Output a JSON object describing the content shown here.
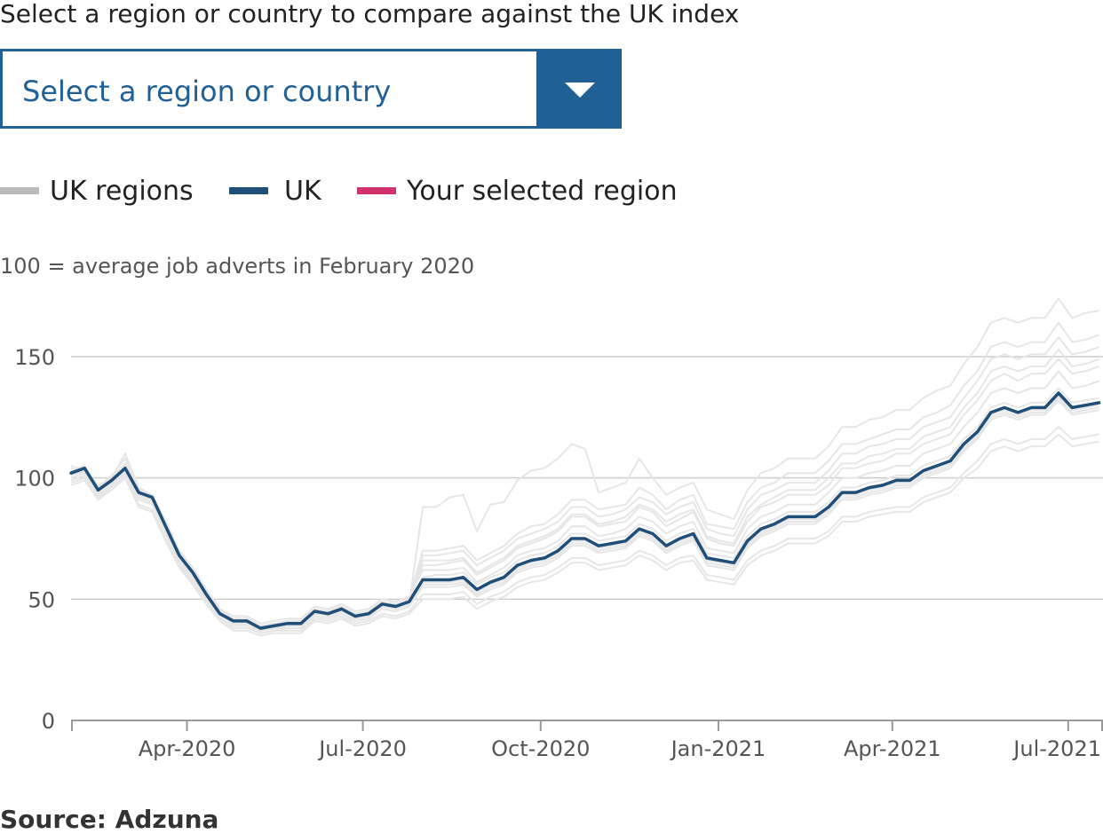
{
  "prompt": "Select a region or country to compare against the UK index",
  "select": {
    "value": "Select a region or country"
  },
  "legend": [
    {
      "label": "UK regions",
      "color": "#bbbbbb"
    },
    {
      "label": "UK",
      "color": "#1f4e79"
    },
    {
      "label": "Your selected region",
      "color": "#d0336c"
    }
  ],
  "source": "Source: Adzuna",
  "colors": {
    "accent": "#206095",
    "uk": "#1f4e79",
    "regions": "#e6e6e6",
    "selected": "#d0336c",
    "grid": "#cccccc"
  },
  "chart_data": {
    "type": "line",
    "subtitle": "100 = average job adverts in February 2020",
    "ylim": [
      0,
      180
    ],
    "yticks": [
      0,
      50,
      100,
      150
    ],
    "xlim": [
      "2020-02-01",
      "2021-07-19"
    ],
    "xticks": [
      {
        "label": "Apr-2020",
        "date": "2020-04-01"
      },
      {
        "label": "Jul-2020",
        "date": "2020-07-01"
      },
      {
        "label": "Oct-2020",
        "date": "2020-10-01"
      },
      {
        "label": "Jan-2021",
        "date": "2021-01-01"
      },
      {
        "label": "Apr-2021",
        "date": "2021-04-01"
      },
      {
        "label": "Jul-2021",
        "date": "2021-07-01"
      }
    ],
    "grid": true,
    "x": [
      "2020-02-01",
      "2020-02-08",
      "2020-02-15",
      "2020-02-22",
      "2020-02-29",
      "2020-03-07",
      "2020-03-14",
      "2020-03-21",
      "2020-03-28",
      "2020-04-04",
      "2020-04-11",
      "2020-04-18",
      "2020-04-25",
      "2020-05-02",
      "2020-05-09",
      "2020-05-16",
      "2020-05-23",
      "2020-05-30",
      "2020-06-06",
      "2020-06-13",
      "2020-06-20",
      "2020-06-27",
      "2020-07-04",
      "2020-07-11",
      "2020-07-18",
      "2020-07-25",
      "2020-08-01",
      "2020-08-08",
      "2020-08-15",
      "2020-08-22",
      "2020-08-29",
      "2020-09-05",
      "2020-09-12",
      "2020-09-19",
      "2020-09-26",
      "2020-10-03",
      "2020-10-10",
      "2020-10-17",
      "2020-10-24",
      "2020-10-31",
      "2020-11-07",
      "2020-11-14",
      "2020-11-21",
      "2020-11-28",
      "2020-12-05",
      "2020-12-12",
      "2020-12-19",
      "2020-12-26",
      "2021-01-02",
      "2021-01-09",
      "2021-01-16",
      "2021-01-23",
      "2021-01-30",
      "2021-02-06",
      "2021-02-13",
      "2021-02-20",
      "2021-02-27",
      "2021-03-06",
      "2021-03-13",
      "2021-03-20",
      "2021-03-27",
      "2021-04-03",
      "2021-04-10",
      "2021-04-17",
      "2021-04-24",
      "2021-05-01",
      "2021-05-08",
      "2021-05-15",
      "2021-05-22",
      "2021-05-29",
      "2021-06-05",
      "2021-06-12",
      "2021-06-19",
      "2021-06-26",
      "2021-07-03",
      "2021-07-10",
      "2021-07-17"
    ],
    "series": [
      {
        "name": "UK",
        "values": [
          102,
          104,
          95,
          99,
          104,
          94,
          92,
          80,
          68,
          61,
          52,
          44,
          41,
          41,
          38,
          39,
          40,
          40,
          45,
          44,
          46,
          43,
          44,
          48,
          47,
          49,
          58,
          58,
          58,
          59,
          54,
          57,
          59,
          64,
          66,
          67,
          70,
          75,
          75,
          72,
          73,
          74,
          79,
          77,
          72,
          75,
          77,
          67,
          66,
          65,
          74,
          79,
          81,
          84,
          84,
          84,
          88,
          94,
          94,
          96,
          97,
          99,
          99,
          103,
          105,
          107,
          114,
          119,
          127,
          129,
          127,
          129,
          129,
          135,
          129,
          130,
          131
        ]
      }
    ],
    "regions": [
      [
        103,
        104,
        95,
        99,
        105,
        94,
        92,
        80,
        68,
        61,
        52,
        44,
        41,
        41,
        38,
        39,
        40,
        40,
        45,
        44,
        46,
        43,
        44,
        48,
        47,
        49,
        59,
        60,
        60,
        61,
        56,
        59,
        61,
        66,
        68,
        69,
        72,
        77,
        77,
        74,
        75,
        76,
        81,
        79,
        74,
        77,
        79,
        69,
        68,
        67,
        76,
        81,
        83,
        86,
        86,
        86,
        90,
        96,
        96,
        98,
        99,
        101,
        101,
        105,
        107,
        109,
        116,
        121,
        129,
        131,
        129,
        131,
        131,
        137,
        131,
        132,
        133
      ],
      [
        100,
        102,
        93,
        97,
        103,
        92,
        90,
        78,
        66,
        59,
        50,
        42,
        39,
        39,
        36,
        37,
        38,
        38,
        43,
        42,
        44,
        41,
        42,
        46,
        45,
        47,
        55,
        55,
        55,
        56,
        51,
        54,
        56,
        61,
        63,
        64,
        67,
        72,
        72,
        69,
        70,
        71,
        76,
        74,
        69,
        72,
        74,
        64,
        63,
        62,
        71,
        76,
        78,
        81,
        81,
        81,
        85,
        91,
        91,
        93,
        94,
        96,
        96,
        100,
        102,
        104,
        111,
        116,
        124,
        126,
        124,
        126,
        126,
        132,
        126,
        127,
        128
      ],
      [
        105,
        103,
        97,
        100,
        110,
        96,
        93,
        82,
        70,
        63,
        54,
        46,
        42,
        42,
        39,
        40,
        41,
        41,
        46,
        45,
        47,
        44,
        45,
        49,
        48,
        50,
        64,
        64,
        65,
        66,
        60,
        63,
        66,
        71,
        73,
        75,
        78,
        84,
        84,
        80,
        81,
        82,
        88,
        86,
        80,
        83,
        86,
        75,
        73,
        72,
        82,
        88,
        90,
        93,
        93,
        93,
        97,
        104,
        104,
        106,
        107,
        110,
        110,
        114,
        116,
        118,
        126,
        132,
        140,
        143,
        140,
        143,
        143,
        149,
        143,
        144,
        146
      ],
      [
        98,
        100,
        92,
        96,
        101,
        89,
        87,
        75,
        64,
        57,
        49,
        42,
        38,
        38,
        36,
        37,
        37,
        37,
        42,
        41,
        43,
        40,
        41,
        44,
        43,
        45,
        52,
        52,
        52,
        53,
        48,
        51,
        53,
        57,
        59,
        60,
        63,
        67,
        67,
        64,
        65,
        66,
        70,
        68,
        64,
        67,
        68,
        60,
        59,
        58,
        66,
        70,
        72,
        75,
        75,
        75,
        78,
        84,
        84,
        86,
        87,
        88,
        88,
        92,
        94,
        96,
        102,
        107,
        114,
        116,
        114,
        116,
        116,
        121,
        116,
        117,
        118
      ],
      [
        101,
        104,
        94,
        99,
        104,
        93,
        91,
        79,
        67,
        60,
        51,
        43,
        40,
        40,
        37,
        38,
        39,
        39,
        44,
        43,
        45,
        42,
        43,
        47,
        46,
        48,
        88,
        88,
        92,
        93,
        78,
        89,
        90,
        99,
        103,
        104,
        108,
        114,
        112,
        94,
        96,
        98,
        108,
        100,
        93,
        96,
        98,
        87,
        85,
        83,
        95,
        102,
        104,
        108,
        108,
        108,
        113,
        121,
        121,
        124,
        125,
        128,
        128,
        133,
        136,
        138,
        147,
        154,
        164,
        166,
        164,
        166,
        166,
        174,
        166,
        168,
        169
      ],
      [
        104,
        102,
        96,
        101,
        108,
        95,
        93,
        82,
        70,
        63,
        54,
        46,
        43,
        43,
        40,
        41,
        42,
        42,
        47,
        46,
        48,
        45,
        46,
        50,
        49,
        51,
        62,
        62,
        62,
        63,
        57,
        60,
        63,
        68,
        70,
        71,
        74,
        80,
        80,
        76,
        77,
        79,
        84,
        82,
        77,
        80,
        82,
        71,
        70,
        69,
        79,
        84,
        86,
        89,
        89,
        89,
        94,
        100,
        100,
        102,
        103,
        105,
        105,
        110,
        112,
        114,
        121,
        127,
        135,
        137,
        135,
        137,
        137,
        144,
        137,
        138,
        140
      ],
      [
        99,
        101,
        93,
        97,
        102,
        91,
        89,
        77,
        65,
        58,
        50,
        42,
        39,
        39,
        37,
        38,
        38,
        38,
        43,
        42,
        44,
        41,
        42,
        46,
        45,
        47,
        56,
        56,
        56,
        57,
        52,
        55,
        57,
        62,
        64,
        65,
        68,
        73,
        73,
        70,
        71,
        72,
        77,
        75,
        70,
        73,
        75,
        65,
        64,
        63,
        72,
        77,
        79,
        82,
        82,
        82,
        86,
        92,
        92,
        94,
        95,
        97,
        97,
        101,
        103,
        105,
        112,
        117,
        125,
        127,
        125,
        127,
        127,
        133,
        127,
        128,
        129
      ],
      [
        102,
        103,
        95,
        98,
        104,
        93,
        91,
        79,
        67,
        60,
        51,
        43,
        40,
        40,
        37,
        38,
        39,
        39,
        44,
        43,
        45,
        42,
        43,
        47,
        46,
        48,
        66,
        66,
        66,
        67,
        61,
        64,
        67,
        72,
        74,
        76,
        79,
        85,
        85,
        81,
        82,
        84,
        89,
        87,
        82,
        85,
        87,
        76,
        74,
        73,
        84,
        89,
        92,
        95,
        95,
        95,
        100,
        106,
        106,
        109,
        110,
        112,
        112,
        117,
        119,
        121,
        129,
        135,
        144,
        146,
        144,
        146,
        146,
        153,
        146,
        147,
        149
      ],
      [
        97,
        99,
        91,
        95,
        100,
        88,
        86,
        74,
        63,
        56,
        48,
        41,
        37,
        37,
        35,
        36,
        36,
        36,
        41,
        40,
        42,
        39,
        40,
        43,
        42,
        44,
        50,
        50,
        50,
        51,
        46,
        49,
        51,
        55,
        57,
        58,
        61,
        65,
        65,
        62,
        63,
        64,
        68,
        66,
        62,
        65,
        66,
        58,
        57,
        56,
        64,
        68,
        70,
        73,
        73,
        73,
        76,
        82,
        82,
        84,
        85,
        86,
        86,
        90,
        92,
        94,
        100,
        104,
        111,
        113,
        111,
        113,
        113,
        118,
        113,
        114,
        115
      ],
      [
        103,
        105,
        96,
        100,
        106,
        95,
        93,
        81,
        69,
        62,
        53,
        45,
        42,
        42,
        39,
        40,
        41,
        41,
        46,
        45,
        47,
        44,
        45,
        49,
        48,
        50,
        70,
        70,
        71,
        72,
        66,
        69,
        72,
        77,
        80,
        81,
        85,
        91,
        91,
        87,
        88,
        89,
        96,
        93,
        87,
        91,
        93,
        81,
        80,
        79,
        90,
        96,
        98,
        102,
        102,
        102,
        107,
        114,
        114,
        116,
        118,
        120,
        120,
        125,
        127,
        130,
        138,
        144,
        154,
        156,
        154,
        156,
        156,
        164,
        156,
        157,
        159
      ],
      [
        100,
        102,
        94,
        98,
        103,
        92,
        90,
        78,
        66,
        59,
        51,
        43,
        40,
        40,
        37,
        38,
        39,
        39,
        44,
        43,
        45,
        42,
        43,
        47,
        46,
        48,
        57,
        57,
        57,
        58,
        53,
        56,
        58,
        63,
        65,
        66,
        69,
        74,
        74,
        71,
        72,
        73,
        78,
        76,
        71,
        74,
        76,
        66,
        65,
        64,
        73,
        78,
        80,
        83,
        83,
        83,
        87,
        93,
        93,
        95,
        96,
        98,
        98,
        102,
        104,
        106,
        113,
        118,
        126,
        128,
        126,
        128,
        128,
        134,
        128,
        129,
        130
      ],
      [
        101,
        103,
        95,
        98,
        104,
        93,
        91,
        79,
        67,
        60,
        52,
        44,
        40,
        40,
        38,
        38,
        39,
        39,
        44,
        43,
        46,
        42,
        43,
        47,
        46,
        48,
        68,
        68,
        69,
        70,
        64,
        67,
        70,
        75,
        77,
        79,
        82,
        88,
        88,
        84,
        85,
        87,
        92,
        90,
        85,
        88,
        90,
        79,
        77,
        76,
        87,
        93,
        95,
        98,
        98,
        98,
        103,
        110,
        110,
        113,
        114,
        116,
        116,
        121,
        123,
        125,
        133,
        140,
        149,
        151,
        149,
        151,
        151,
        158,
        151,
        152,
        154
      ]
    ]
  }
}
